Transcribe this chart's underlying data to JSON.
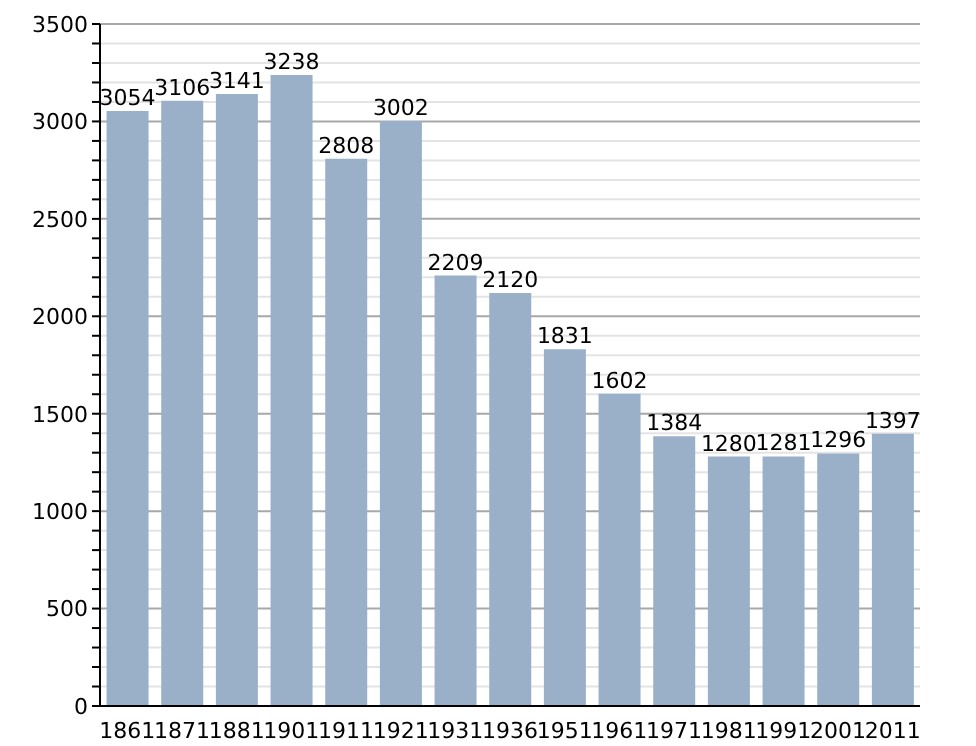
{
  "chart_data": {
    "type": "bar",
    "categories": [
      "1861",
      "1871",
      "1881",
      "1901",
      "1911",
      "1921",
      "1931",
      "1936",
      "1951",
      "1961",
      "1971",
      "1981",
      "1991",
      "2001",
      "2011"
    ],
    "values": [
      3054,
      3106,
      3141,
      3238,
      2808,
      3002,
      2209,
      2120,
      1831,
      1602,
      1384,
      1280,
      1281,
      1296,
      1397
    ],
    "color": "#9ab0c9",
    "ylim": [
      0,
      3500
    ],
    "yticks": [
      0,
      {
        "value": 100,
        "label": null
      },
      {
        "value": 200,
        "label": null
      },
      {
        "value": 300,
        "label": null
      },
      {
        "value": 400,
        "label": null
      },
      500,
      {
        "value": 600,
        "label": null
      },
      {
        "value": 700,
        "label": null
      },
      {
        "value": 800,
        "label": null
      },
      {
        "value": 900,
        "label": null
      },
      1000,
      {
        "value": 1100,
        "label": null
      },
      {
        "value": 1200,
        "label": null
      },
      {
        "value": 1300,
        "label": null
      },
      {
        "value": 1400,
        "label": null
      },
      1500,
      {
        "value": 1600,
        "label": null
      },
      {
        "value": 1700,
        "label": null
      },
      {
        "value": 1800,
        "label": null
      },
      {
        "value": 1900,
        "label": null
      },
      2000,
      {
        "value": 2100,
        "label": null
      },
      {
        "value": 2200,
        "label": null
      },
      {
        "value": 2300,
        "label": null
      },
      {
        "value": 2400,
        "label": null
      },
      2500,
      {
        "value": 2600,
        "label": null
      },
      {
        "value": 2700,
        "label": null
      },
      {
        "value": 2800,
        "label": null
      },
      {
        "value": 2900,
        "label": null
      },
      3000,
      {
        "value": 3100,
        "label": null
      },
      {
        "value": 3200,
        "label": null
      },
      {
        "value": 3300,
        "label": null
      },
      {
        "value": 3400,
        "label": null
      },
      3500
    ],
    "grid": true,
    "data_labels": true
  }
}
